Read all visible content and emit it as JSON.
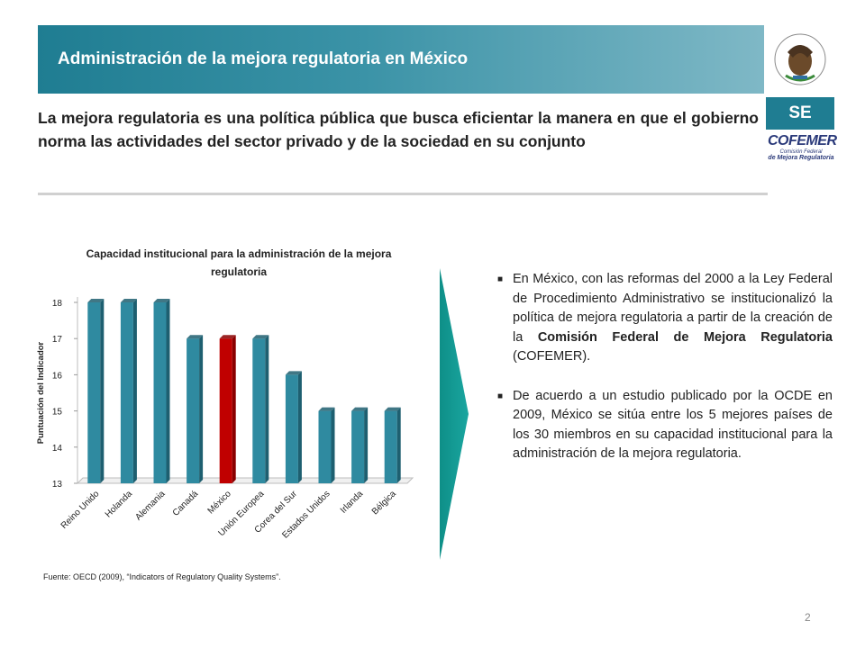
{
  "header": {
    "title": "Administración de la mejora regulatoria en México"
  },
  "logos": {
    "emblem_text": "ESTADOS UNIDOS MEXICANOS",
    "se_label": "SE",
    "cofemer_main": "COFEMER",
    "cofemer_sub1": "Comisión Federal",
    "cofemer_sub2": "de Mejora Regulatoria"
  },
  "intro": "La mejora regulatoria es una política pública que busca eficientar la manera en que el gobierno norma las actividades del sector privado y de la sociedad en su conjunto",
  "chart_data": {
    "type": "bar",
    "title": "Capacidad institucional para la administración de la mejora regulatoria",
    "ylabel": "Puntuación del Indicador",
    "xlabel": "",
    "categories": [
      "Reino Unido",
      "Holanda",
      "Alemania",
      "Canadá",
      "México",
      "Unión Europea",
      "Corea del Sur",
      "Estados Unidos",
      "Irlanda",
      "Bélgica"
    ],
    "values": [
      18,
      18,
      18,
      17,
      17,
      17,
      16,
      15,
      15,
      15
    ],
    "highlight": "México",
    "ylim": [
      13,
      18
    ],
    "yticks": [
      13,
      14,
      15,
      16,
      17,
      18
    ],
    "colors": {
      "bar": "#2f8aa0",
      "highlight": "#c00000"
    },
    "grid": false,
    "legend": "none"
  },
  "source": "Fuente: OECD (2009), “Indicators of Regulatory Quality Systems”.",
  "bullets": [
    {
      "mark": "■",
      "pre": "En México, con las reformas del 2000 a la Ley Federal de Procedimiento Administrativo se institucionalizó la política de mejora regulatoria a partir de la creación de la ",
      "bold": "Comisión Federal de Mejora Regulatoria",
      "post": " (COFEMER)."
    },
    {
      "mark": "■",
      "text": "De acuerdo a un estudio publicado por la OCDE en 2009, México se sitúa entre los 5 mejores países de los 30 miembros en su capacidad institucional para la administración de la mejora regulatoria."
    }
  ],
  "page_number": "2"
}
